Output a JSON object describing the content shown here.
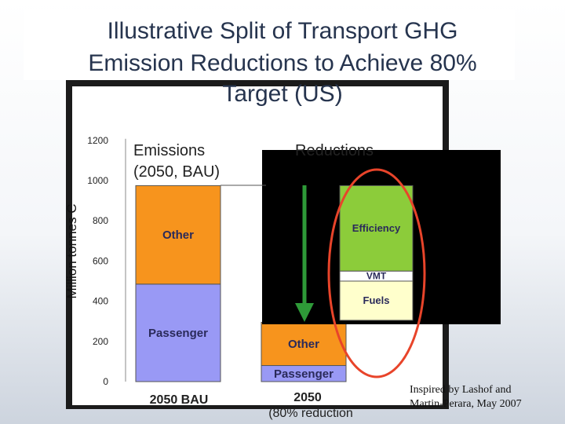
{
  "title_lines": [
    "Illustrative Split of Transport GHG",
    "Emission Reductions to Achieve 80%",
    "Target (US)"
  ],
  "credit_lines": [
    "Inspired by Lashof and",
    "Martin-Perara, May 2007"
  ],
  "colors": {
    "passenger": "#9999f5",
    "other": "#f7941d",
    "efficiency": "#8ccc3a",
    "vmt": "#ffffff",
    "fuels": "#ffffcc",
    "arrow": "#2e9a38",
    "ellipse": "#e8442a"
  },
  "chart_data": {
    "type": "bar",
    "stacked": true,
    "ylabel": "Million tonnes C",
    "ylim": [
      0,
      1200
    ],
    "yticks": [
      0,
      200,
      400,
      600,
      800,
      1000,
      1200
    ],
    "categories": [
      "2050 BAU",
      "2050\n(80% reduction"
    ],
    "category_labels": [
      [
        "2050 BAU"
      ],
      [
        "2050",
        "(80% reduction"
      ]
    ],
    "group_labels": [
      {
        "lines": [
          "Emissions",
          "(2050, BAU)"
        ]
      },
      {
        "lines": [
          "Reductions"
        ]
      }
    ],
    "stacks": [
      {
        "category": "2050 BAU",
        "segments": [
          {
            "name": "Passenger",
            "bottom": 0,
            "top": 485
          },
          {
            "name": "Other",
            "bottom": 485,
            "top": 975
          }
        ]
      },
      {
        "category": "2050\n(80% reduction",
        "segments": [
          {
            "name": "Passenger",
            "bottom": 0,
            "top": 80
          },
          {
            "name": "Other",
            "bottom": 80,
            "top": 295
          }
        ]
      },
      {
        "category": "Reductions",
        "segments": [
          {
            "name": "Fuels",
            "bottom": 305,
            "top": 500
          },
          {
            "name": "VMT",
            "bottom": 500,
            "top": 550
          },
          {
            "name": "Efficiency",
            "bottom": 550,
            "top": 975
          }
        ]
      }
    ]
  }
}
